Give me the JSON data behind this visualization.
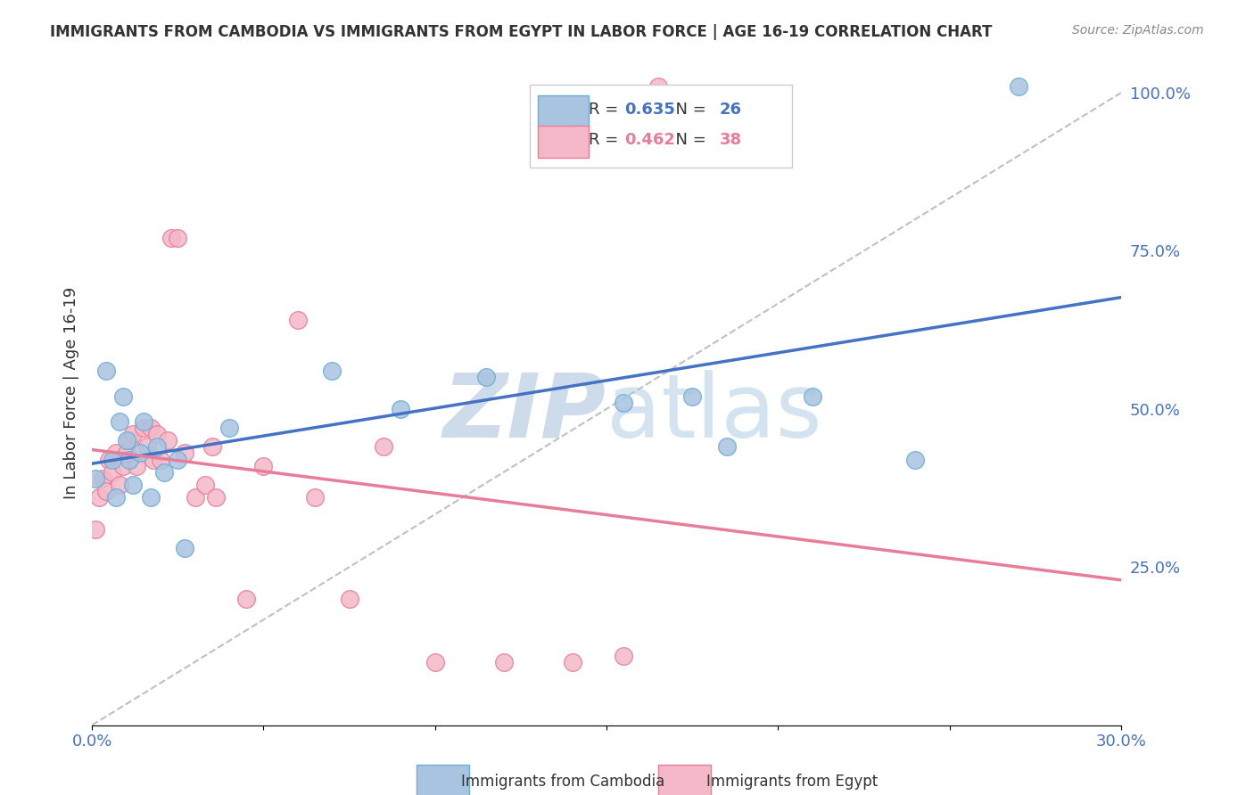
{
  "title": "IMMIGRANTS FROM CAMBODIA VS IMMIGRANTS FROM EGYPT IN LABOR FORCE | AGE 16-19 CORRELATION CHART",
  "source": "Source: ZipAtlas.com",
  "ylabel": "In Labor Force | Age 16-19",
  "xlim": [
    0.0,
    0.3
  ],
  "ylim": [
    0.0,
    1.05
  ],
  "cambodia_color": "#a8c4e0",
  "cambodia_edge": "#6aaed6",
  "egypt_color": "#f4b8c8",
  "egypt_edge": "#e87d9a",
  "cambodia_line_color": "#4472c4",
  "egypt_line_color": "#e87d9a",
  "cambodia_R": 0.635,
  "cambodia_N": 26,
  "egypt_R": 0.462,
  "egypt_N": 38,
  "legend_label_cambodia": "Immigrants from Cambodia",
  "legend_label_egypt": "Immigrants from Egypt",
  "grid_color": "#d0d0d0",
  "watermark_color": "#c8d8e8",
  "ref_line_color": "#c0c0c0",
  "cambodia_x": [
    0.001,
    0.004,
    0.006,
    0.007,
    0.008,
    0.009,
    0.01,
    0.011,
    0.012,
    0.014,
    0.015,
    0.017,
    0.019,
    0.021,
    0.025,
    0.027,
    0.04,
    0.07,
    0.09,
    0.115,
    0.155,
    0.175,
    0.185,
    0.21,
    0.24,
    0.27
  ],
  "cambodia_y": [
    0.39,
    0.56,
    0.42,
    0.36,
    0.48,
    0.52,
    0.45,
    0.42,
    0.38,
    0.43,
    0.48,
    0.36,
    0.44,
    0.4,
    0.42,
    0.28,
    0.47,
    0.56,
    0.5,
    0.55,
    0.51,
    0.52,
    0.44,
    0.52,
    0.42,
    1.01
  ],
  "egypt_x": [
    0.001,
    0.002,
    0.003,
    0.004,
    0.005,
    0.006,
    0.007,
    0.008,
    0.009,
    0.01,
    0.011,
    0.012,
    0.013,
    0.015,
    0.016,
    0.017,
    0.018,
    0.019,
    0.02,
    0.022,
    0.023,
    0.025,
    0.027,
    0.03,
    0.033,
    0.035,
    0.036,
    0.045,
    0.05,
    0.06,
    0.065,
    0.075,
    0.085,
    0.1,
    0.12,
    0.14,
    0.155,
    0.165
  ],
  "egypt_y": [
    0.31,
    0.36,
    0.39,
    0.37,
    0.42,
    0.4,
    0.43,
    0.38,
    0.41,
    0.43,
    0.45,
    0.46,
    0.41,
    0.47,
    0.44,
    0.47,
    0.42,
    0.46,
    0.42,
    0.45,
    0.77,
    0.77,
    0.43,
    0.36,
    0.38,
    0.44,
    0.36,
    0.2,
    0.41,
    0.64,
    0.36,
    0.2,
    0.44,
    0.1,
    0.1,
    0.1,
    0.11,
    1.01
  ]
}
